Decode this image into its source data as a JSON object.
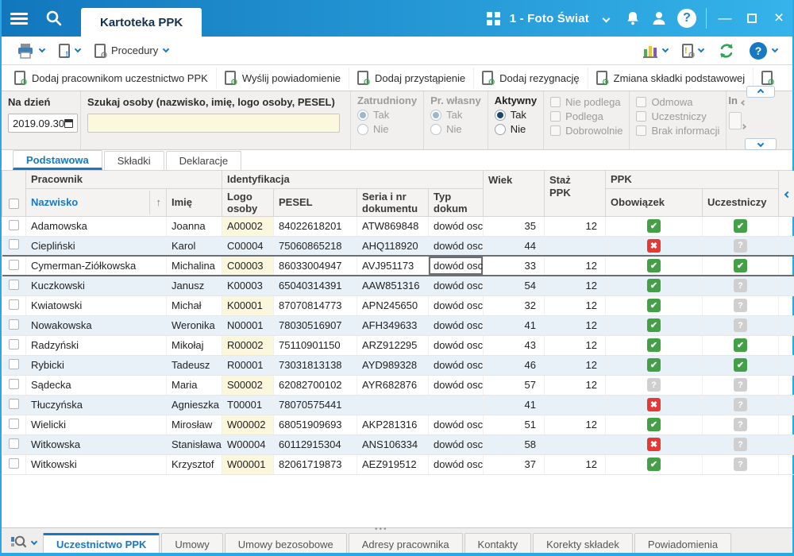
{
  "titlebar": {
    "tab": "Kartoteka PPK",
    "company": "1 - Foto Świat"
  },
  "toolbar": {
    "procedures": "Procedury"
  },
  "actions": [
    "Dodaj pracownikom uczestnictwo PPK",
    "Wyślij powiadomienie",
    "Dodaj przystąpienie",
    "Dodaj rezygnację",
    "Zmiana składki podstawowej"
  ],
  "filters": {
    "date_label": "Na dzień",
    "date_value": "2019.09.30",
    "search_label": "Szukaj osoby (nazwisko, imię, logo osoby, PESEL)",
    "search_value": "",
    "radio_groups": [
      {
        "label": "Zatrudniony",
        "options": [
          "Tak",
          "Nie"
        ],
        "selected": "Tak",
        "enabled": false
      },
      {
        "label": "Pr. własny",
        "options": [
          "Tak",
          "Nie"
        ],
        "selected": "Tak",
        "enabled": false
      },
      {
        "label": "Aktywny",
        "options": [
          "Tak",
          "Nie"
        ],
        "selected": "Tak",
        "enabled": true
      }
    ],
    "checkbox_groups": [
      {
        "options": [
          "Nie podlega",
          "Podlega",
          "Dobrowolnie"
        ]
      },
      {
        "options": [
          "Odmowa",
          "Uczestniczy",
          "Brak informacji"
        ]
      }
    ],
    "side_panel_label": "In"
  },
  "view_tabs": [
    {
      "label": "Podstawowa",
      "active": true
    },
    {
      "label": "Składki",
      "active": false
    },
    {
      "label": "Deklaracje",
      "active": false
    }
  ],
  "table": {
    "group_headers": {
      "pracownik": "Pracownik",
      "identyfikacja": "Identyfikacja",
      "ppk": "PPK"
    },
    "col_headers": {
      "nazwisko": "Nazwisko",
      "imie": "Imię",
      "logo": "Logo osoby",
      "pesel": "PESEL",
      "seria": "Seria i nr dokumentu",
      "typ": "Typ dokum",
      "wiek": "Wiek",
      "staz": "Staż PPK",
      "obowiazek": "Obowiązek",
      "uczestniczy": "Uczestniczy"
    },
    "selected_row": 2,
    "rows": [
      {
        "nazwisko": "Adamowska",
        "imie": "Joanna",
        "logo": "A00002",
        "pesel": "84022618201",
        "seria": "ATW869848",
        "typ": "dowód osc",
        "wiek": "35",
        "staz": "12",
        "obowiazek": "check",
        "uczestniczy": "check"
      },
      {
        "nazwisko": "Ciepliński",
        "imie": "Karol",
        "logo": "C00004",
        "pesel": "75060865218",
        "seria": "AHQ118920",
        "typ": "dowód osc",
        "wiek": "44",
        "staz": "",
        "obowiazek": "cross",
        "uczestniczy": "question"
      },
      {
        "nazwisko": "Cymerman-Ziółkowska",
        "imie": "Michalina",
        "logo": "C00003",
        "pesel": "86033004947",
        "seria": "AVJ951173",
        "typ": "dowód osc",
        "wiek": "33",
        "staz": "12",
        "obowiazek": "check",
        "uczestniczy": "check"
      },
      {
        "nazwisko": "Kuczkowski",
        "imie": "Janusz",
        "logo": "K00003",
        "pesel": "65040314391",
        "seria": "AAW851316",
        "typ": "dowód osc",
        "wiek": "54",
        "staz": "12",
        "obowiazek": "check",
        "uczestniczy": "question"
      },
      {
        "nazwisko": "Kwiatowski",
        "imie": "Michał",
        "logo": "K00001",
        "pesel": "87070814773",
        "seria": "APN245650",
        "typ": "dowód osc",
        "wiek": "32",
        "staz": "12",
        "obowiazek": "check",
        "uczestniczy": "question"
      },
      {
        "nazwisko": "Nowakowska",
        "imie": "Weronika",
        "logo": "N00001",
        "pesel": "78030516907",
        "seria": "AFH349633",
        "typ": "dowód osc",
        "wiek": "41",
        "staz": "12",
        "obowiazek": "check",
        "uczestniczy": "question"
      },
      {
        "nazwisko": "Radzyński",
        "imie": "Mikołaj",
        "logo": "R00002",
        "pesel": "75110901150",
        "seria": "ARZ912295",
        "typ": "dowód osc",
        "wiek": "43",
        "staz": "12",
        "obowiazek": "check",
        "uczestniczy": "check"
      },
      {
        "nazwisko": "Rybicki",
        "imie": "Tadeusz",
        "logo": "R00001",
        "pesel": "73031813138",
        "seria": "AYD989328",
        "typ": "dowód osc",
        "wiek": "46",
        "staz": "12",
        "obowiazek": "check",
        "uczestniczy": "check"
      },
      {
        "nazwisko": "Sądecka",
        "imie": "Maria",
        "logo": "S00002",
        "pesel": "62082700102",
        "seria": "AYR682876",
        "typ": "dowód osc",
        "wiek": "57",
        "staz": "12",
        "obowiazek": "question",
        "uczestniczy": "question"
      },
      {
        "nazwisko": "Tłuczyńska",
        "imie": "Agnieszka",
        "logo": "T00001",
        "pesel": "78070575441",
        "seria": "",
        "typ": "",
        "wiek": "41",
        "staz": "",
        "obowiazek": "cross",
        "uczestniczy": "question"
      },
      {
        "nazwisko": "Wielicki",
        "imie": "Mirosław",
        "logo": "W00002",
        "pesel": "68051909693",
        "seria": "AKP281316",
        "typ": "dowód osc",
        "wiek": "51",
        "staz": "12",
        "obowiazek": "check",
        "uczestniczy": "question"
      },
      {
        "nazwisko": "Witkowska",
        "imie": "Stanisława",
        "logo": "W00004",
        "pesel": "60112915304",
        "seria": "ANS106334",
        "typ": "dowód osc",
        "wiek": "58",
        "staz": "",
        "obowiazek": "cross",
        "uczestniczy": "question"
      },
      {
        "nazwisko": "Witkowski",
        "imie": "Krzysztof",
        "logo": "W00001",
        "pesel": "82061719873",
        "seria": "AEZ919512",
        "typ": "dowód osc",
        "wiek": "37",
        "staz": "12",
        "obowiazek": "check",
        "uczestniczy": "question"
      }
    ]
  },
  "bottom_tabs": [
    {
      "label": "Uczestnictwo PPK",
      "active": true
    },
    {
      "label": "Umowy",
      "active": false
    },
    {
      "label": "Umowy bezosobowe",
      "active": false
    },
    {
      "label": "Adresy pracownika",
      "active": false
    },
    {
      "label": "Kontakty",
      "active": false
    },
    {
      "label": "Korekty składek",
      "active": false
    },
    {
      "label": "Powiadomienia",
      "active": false
    }
  ],
  "icons": {
    "check": "✔",
    "cross": "✖",
    "question": "?",
    "sort_asc": "↑"
  },
  "colors": {
    "accent_blue": "#1779c4",
    "titlebar_start": "#1277bd",
    "titlebar_end": "#35b3ea",
    "status_green": "#43a047",
    "status_red": "#e53935",
    "status_gray": "#cfcfcf",
    "highlight_yellow": "#fbf7dc",
    "row_stripe": "#e9f1f8",
    "selected_border": "#6e6e6e"
  }
}
